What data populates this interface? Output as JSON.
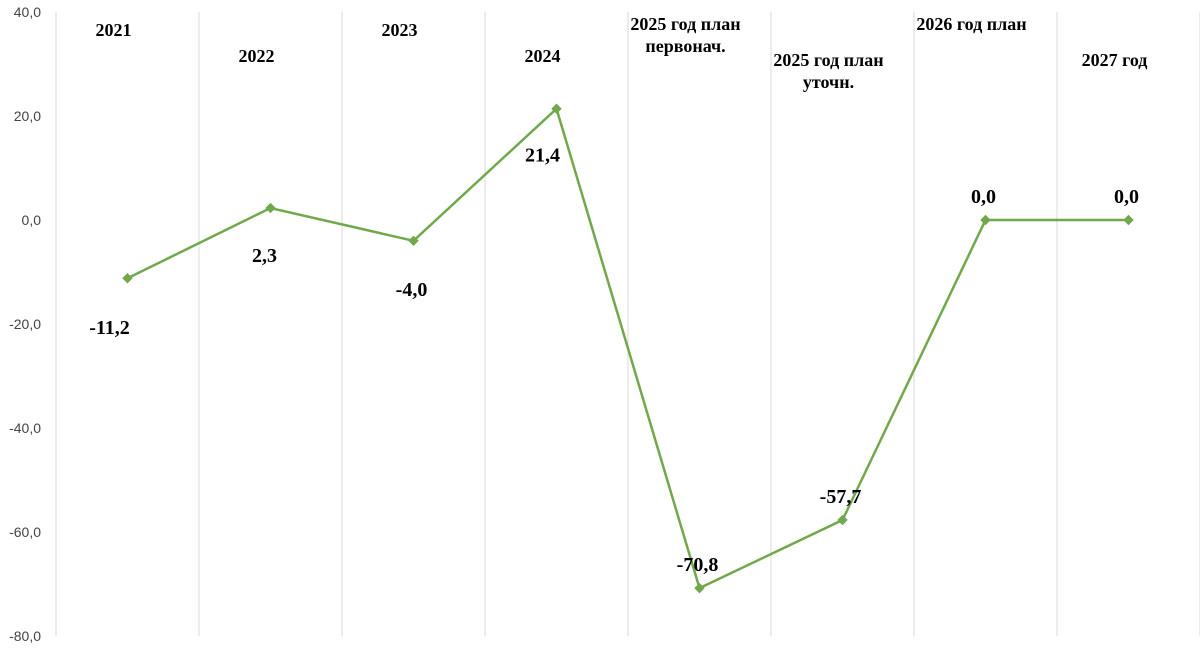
{
  "chart_data": {
    "type": "line",
    "categories": [
      [
        "2021"
      ],
      [
        "2022"
      ],
      [
        "2023"
      ],
      [
        "2024"
      ],
      [
        "2025 год план",
        "первонач."
      ],
      [
        "2025 год план",
        "уточн."
      ],
      [
        "2026 год план"
      ],
      [
        "2027 год"
      ]
    ],
    "values": [
      -11.2,
      2.3,
      -4.0,
      21.4,
      -70.8,
      -57.7,
      0.0,
      0.0
    ],
    "data_labels": [
      "-11,2",
      "2,3",
      "-4,0",
      "21,4",
      "-70,8",
      "-57,7",
      "0,0",
      "0,0"
    ],
    "y_ticks": [
      "40,0",
      "20,0",
      "0,0",
      "-20,0",
      "-40,0",
      "-60,0",
      "-80,0"
    ],
    "ylim": [
      -80,
      40
    ],
    "grid": "vertical",
    "line_color": "#70a84b",
    "gridline_color": "#d9d9d9"
  }
}
